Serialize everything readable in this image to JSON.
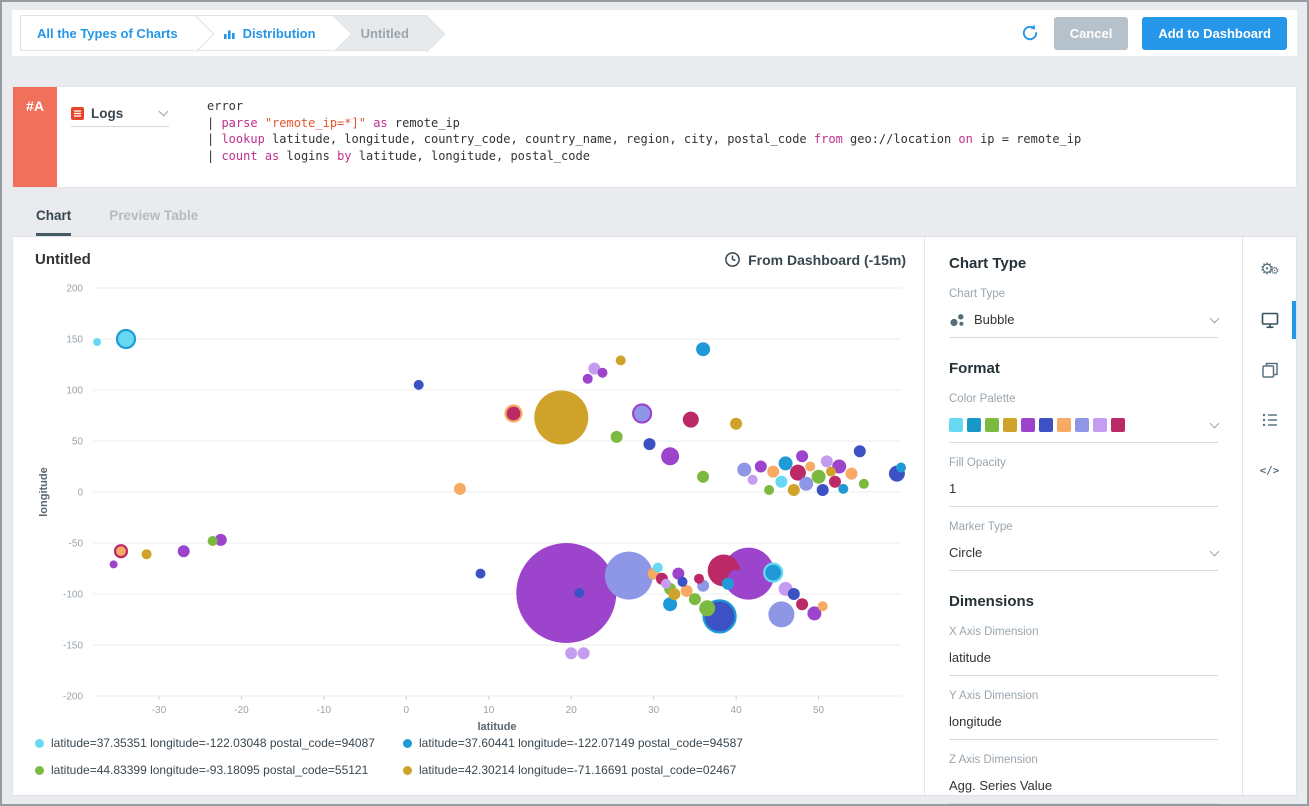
{
  "theme": {
    "accent_blue": "#2596e8",
    "badge_orange": "#f1705b",
    "keyword_color": "#c22f90",
    "string_color": "#e0552e"
  },
  "header": {
    "breadcrumbs": [
      {
        "label": "All the Types of Charts",
        "active": true
      },
      {
        "label": "Distribution",
        "active": true,
        "icon": "bar-chart-icon"
      },
      {
        "label": "Untitled",
        "active": false
      }
    ],
    "cancel_label": "Cancel",
    "add_label": "Add to Dashboard"
  },
  "query_panel": {
    "row_label": "#A",
    "source": {
      "label": "Logs",
      "icon": "logs-icon"
    },
    "query_lines": [
      [
        {
          "t": "error",
          "c": "plain"
        }
      ],
      [
        {
          "t": "| ",
          "c": "plain"
        },
        {
          "t": "parse",
          "c": "kw"
        },
        {
          "t": " ",
          "c": "plain"
        },
        {
          "t": "\"remote_ip=*]\"",
          "c": "str"
        },
        {
          "t": " ",
          "c": "plain"
        },
        {
          "t": "as",
          "c": "kw"
        },
        {
          "t": " remote_ip",
          "c": "plain"
        }
      ],
      [
        {
          "t": "| ",
          "c": "plain"
        },
        {
          "t": "lookup",
          "c": "kw"
        },
        {
          "t": " latitude, longitude, country_code, country_name, region, city, postal_code ",
          "c": "plain"
        },
        {
          "t": "from",
          "c": "kw"
        },
        {
          "t": " geo://location ",
          "c": "plain"
        },
        {
          "t": "on",
          "c": "kw"
        },
        {
          "t": " ip = remote_ip",
          "c": "plain"
        }
      ],
      [
        {
          "t": "| ",
          "c": "plain"
        },
        {
          "t": "count",
          "c": "kw"
        },
        {
          "t": " ",
          "c": "plain"
        },
        {
          "t": "as",
          "c": "kw"
        },
        {
          "t": " logins ",
          "c": "plain"
        },
        {
          "t": "by",
          "c": "kw"
        },
        {
          "t": " latitude, longitude, postal_code",
          "c": "plain"
        }
      ]
    ]
  },
  "tabs": [
    {
      "label": "Chart",
      "active": true
    },
    {
      "label": "Preview Table",
      "active": false
    }
  ],
  "chart": {
    "title": "Untitled",
    "time_label": "From Dashboard (-15m)"
  },
  "chart_data": {
    "type": "scatter",
    "subtype": "bubble",
    "title": "Untitled",
    "xlabel": "latitude",
    "ylabel": "longitude",
    "xlim": [
      -38,
      60
    ],
    "ylim": [
      -200,
      200
    ],
    "xticks": [
      -30,
      -20,
      -10,
      0,
      10,
      20,
      30,
      40,
      50
    ],
    "yticks": [
      200,
      150,
      100,
      50,
      0,
      -50,
      -100,
      -150,
      -200
    ],
    "grid": "horizontal",
    "legend_position": "bottom",
    "palette": [
      "#67d9f2",
      "#1f9ad6",
      "#7cb93f",
      "#cfa32a",
      "#9d44cc",
      "#3b51c4",
      "#f6aa63",
      "#8e97e6",
      "#c59df0",
      "#bb2a66"
    ],
    "point_format": "[latitude, longitude, radius_px, palette_index, optional_ring_palette_index]",
    "points": [
      [
        -37.5,
        147,
        4,
        0
      ],
      [
        -34,
        150,
        9,
        0,
        1
      ],
      [
        1.5,
        105,
        5,
        5
      ],
      [
        6.5,
        3,
        6,
        6
      ],
      [
        22,
        111,
        5,
        4
      ],
      [
        22.8,
        121,
        6,
        8
      ],
      [
        23.8,
        117,
        5,
        4
      ],
      [
        26,
        129,
        5,
        3
      ],
      [
        36,
        140,
        7,
        1
      ],
      [
        13,
        77,
        8,
        9,
        6
      ],
      [
        18.8,
        73,
        27,
        3
      ],
      [
        25.5,
        54,
        6,
        2
      ],
      [
        28.6,
        77,
        9,
        7,
        4
      ],
      [
        29.5,
        47,
        6,
        5
      ],
      [
        32,
        35,
        9,
        4
      ],
      [
        34.5,
        71,
        8,
        9
      ],
      [
        36,
        15,
        6,
        2
      ],
      [
        40,
        67,
        6,
        3
      ],
      [
        41,
        22,
        7,
        7
      ],
      [
        42,
        12,
        5,
        8
      ],
      [
        43,
        25,
        6,
        4
      ],
      [
        44,
        2,
        5,
        2
      ],
      [
        44.5,
        20,
        6,
        6
      ],
      [
        45.5,
        10,
        6,
        0
      ],
      [
        46,
        28,
        7,
        1
      ],
      [
        47,
        2,
        6,
        3
      ],
      [
        47.5,
        19,
        8,
        9
      ],
      [
        48,
        35,
        6,
        4
      ],
      [
        48.5,
        8,
        7,
        7
      ],
      [
        49,
        25,
        5,
        6
      ],
      [
        50,
        15,
        7,
        2
      ],
      [
        50.5,
        2,
        6,
        5
      ],
      [
        51,
        30,
        6,
        8
      ],
      [
        51.5,
        20,
        5,
        3
      ],
      [
        52,
        10,
        6,
        9
      ],
      [
        52.5,
        25,
        7,
        4
      ],
      [
        53,
        3,
        5,
        1
      ],
      [
        54,
        18,
        6,
        6
      ],
      [
        55,
        40,
        6,
        5
      ],
      [
        55.5,
        8,
        5,
        2
      ],
      [
        59.5,
        18,
        8,
        5
      ],
      [
        60,
        24,
        5,
        1
      ],
      [
        -35.5,
        -71,
        4,
        4
      ],
      [
        -34.6,
        -58,
        6,
        6,
        9
      ],
      [
        -31.5,
        -61,
        5,
        3
      ],
      [
        -27,
        -58,
        6,
        4
      ],
      [
        -23.5,
        -48,
        5,
        2
      ],
      [
        -22.5,
        -47,
        6,
        4
      ],
      [
        9,
        -80,
        5,
        5
      ],
      [
        19.4,
        -99,
        50,
        4
      ],
      [
        21,
        -99,
        5,
        5
      ],
      [
        27,
        -82,
        24,
        7
      ],
      [
        30,
        -80,
        6,
        6
      ],
      [
        30.5,
        -74,
        5,
        0
      ],
      [
        31,
        -85,
        6,
        9
      ],
      [
        31.5,
        -90,
        5,
        8
      ],
      [
        32,
        -95,
        6,
        2
      ],
      [
        32,
        -110,
        7,
        1
      ],
      [
        32.5,
        -100,
        6,
        3
      ],
      [
        33,
        -80,
        6,
        4
      ],
      [
        33.5,
        -88,
        5,
        5
      ],
      [
        34,
        -97,
        6,
        6
      ],
      [
        35,
        -105,
        6,
        2
      ],
      [
        35.5,
        -85,
        5,
        9
      ],
      [
        36,
        -92,
        6,
        7
      ],
      [
        36.5,
        -114,
        8,
        2
      ],
      [
        38,
        -122,
        16,
        5,
        1
      ],
      [
        38.5,
        -77,
        16,
        9
      ],
      [
        39,
        -90,
        6,
        1
      ],
      [
        40,
        -84,
        8,
        4
      ],
      [
        41.5,
        -80,
        26,
        4
      ],
      [
        44.5,
        -79,
        9,
        1,
        0
      ],
      [
        45.5,
        -120,
        13,
        7
      ],
      [
        46,
        -95,
        7,
        8
      ],
      [
        47,
        -100,
        6,
        5
      ],
      [
        48,
        -110,
        6,
        9
      ],
      [
        49.5,
        -119,
        7,
        4
      ],
      [
        50.5,
        -112,
        5,
        6
      ],
      [
        20,
        -158,
        6,
        8
      ],
      [
        21.5,
        -158,
        6,
        8
      ]
    ]
  },
  "legend": [
    {
      "color": "#67d9f2",
      "label": "latitude=37.35351 longitude=-122.03048 postal_code=94087"
    },
    {
      "color": "#1f9ad6",
      "label": "latitude=37.60441 longitude=-122.07149 postal_code=94587"
    },
    {
      "color": "#7cb93f",
      "label": "latitude=44.83399 longitude=-93.18095 postal_code=55121"
    },
    {
      "color": "#cfa32a",
      "label": "latitude=42.30214 longitude=-71.16691 postal_code=02467"
    }
  ],
  "settings": {
    "chart_type_heading": "Chart Type",
    "chart_type_label": "Chart Type",
    "chart_type_value": "Bubble",
    "chart_type_icon": "bubble-chart-icon",
    "format_heading": "Format",
    "color_palette_label": "Color Palette",
    "palette_swatches": [
      "#67d9f2",
      "#1898c6",
      "#7cb93f",
      "#cfa32a",
      "#9d44cc",
      "#3b51c4",
      "#f6aa63",
      "#8e97e6",
      "#c59df0",
      "#bb2a66"
    ],
    "fill_opacity_label": "Fill Opacity",
    "fill_opacity_value": "1",
    "marker_type_label": "Marker Type",
    "marker_type_value": "Circle",
    "dimensions_heading": "Dimensions",
    "x_dim_label": "X Axis Dimension",
    "x_dim_value": "latitude",
    "y_dim_label": "Y Axis Dimension",
    "y_dim_value": "longitude",
    "z_dim_label": "Z Axis Dimension",
    "z_dim_value": "Agg. Series Value"
  },
  "side_toolbar": [
    {
      "name": "chart-settings",
      "icon": "gears-icon",
      "active": false
    },
    {
      "name": "display-settings",
      "icon": "monitor-icon",
      "active": true
    },
    {
      "name": "duplicate",
      "icon": "copy-icon",
      "active": false
    },
    {
      "name": "series-list",
      "icon": "list-icon",
      "active": false
    },
    {
      "name": "edit-json",
      "icon": "code-icon",
      "active": false
    }
  ]
}
